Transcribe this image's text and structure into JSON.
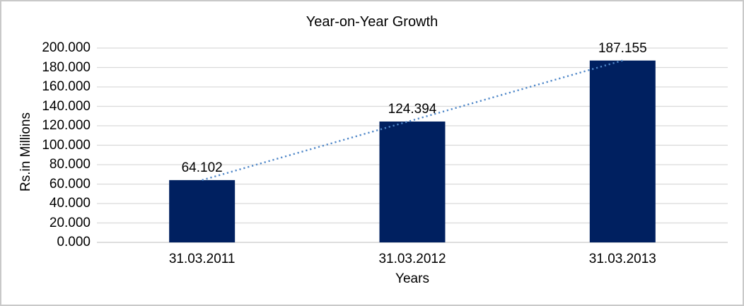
{
  "window": {
    "background": "#ffffff",
    "border_color": "#c9c9c9"
  },
  "chart_data": {
    "type": "bar",
    "title": "Year-on-Year Growth",
    "xlabel": "Years",
    "ylabel": "Rs.in Millions",
    "categories": [
      "31.03.2011",
      "31.03.2012",
      "31.03.2013"
    ],
    "values": [
      64.102,
      124.394,
      187.155
    ],
    "data_labels": [
      "64.102",
      "124.394",
      "187.155"
    ],
    "ylim": [
      0,
      200
    ],
    "y_ticks": [
      {
        "value": 0,
        "label": "0.000"
      },
      {
        "value": 20,
        "label": "20.000"
      },
      {
        "value": 40,
        "label": "40.000"
      },
      {
        "value": 60,
        "label": "60.000"
      },
      {
        "value": 80,
        "label": "80.000"
      },
      {
        "value": 100,
        "label": "100.000"
      },
      {
        "value": 120,
        "label": "120.000"
      },
      {
        "value": 140,
        "label": "140.000"
      },
      {
        "value": 160,
        "label": "160.000"
      },
      {
        "value": 180,
        "label": "180.000"
      },
      {
        "value": 200,
        "label": "200.000"
      }
    ],
    "grid": true,
    "legend": "none",
    "bar_color": "#002060",
    "gridline_color": "#dadada",
    "axis_line_color": "#d4d4d4",
    "text_color": "#000000",
    "trendline": {
      "type": "linear",
      "style": "dotted",
      "color": "#4f87c8"
    }
  }
}
